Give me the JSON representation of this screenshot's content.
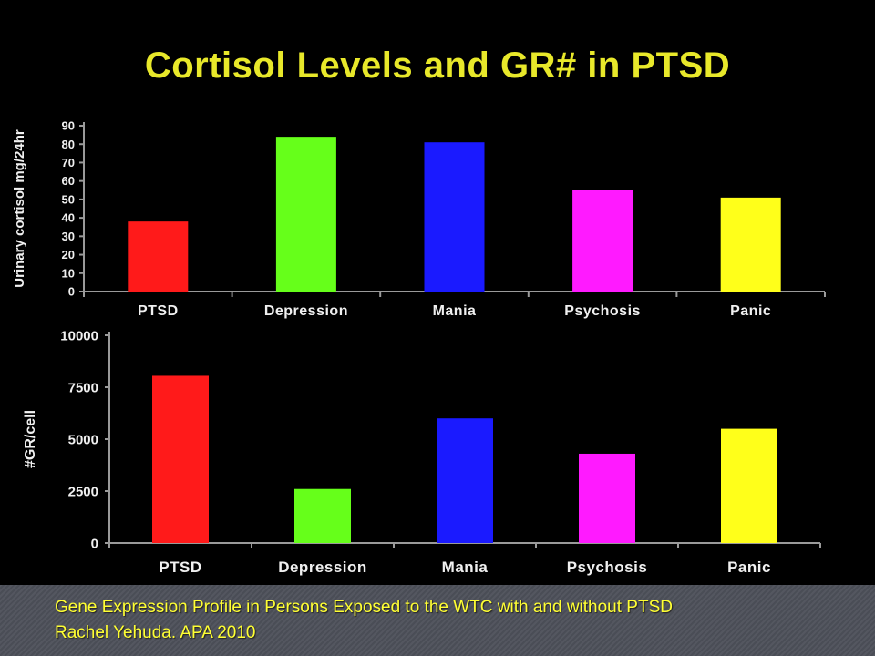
{
  "title": "Cortisol Levels and GR# in PTSD",
  "chart_data": [
    {
      "type": "bar",
      "categories": [
        "PTSD",
        "Depression",
        "Mania",
        "Psychosis",
        "Panic"
      ],
      "values": [
        38,
        84,
        81,
        55,
        51
      ],
      "colors": [
        "#ff1a1a",
        "#66ff1a",
        "#1a1aff",
        "#ff1aff",
        "#ffff1a"
      ],
      "ylabel": "Urinary cortisol mg/24hr",
      "ylim": [
        0,
        90
      ],
      "yticks": [
        0,
        10,
        20,
        30,
        40,
        50,
        60,
        70,
        80,
        90
      ],
      "grid": false
    },
    {
      "type": "bar",
      "categories": [
        "PTSD",
        "Depression",
        "Mania",
        "Psychosis",
        "Panic"
      ],
      "values": [
        8050,
        2600,
        6000,
        4300,
        5500
      ],
      "colors": [
        "#ff1a1a",
        "#66ff1a",
        "#1a1aff",
        "#ff1aff",
        "#ffff1a"
      ],
      "ylabel": "#GR/cell",
      "ylim": [
        0,
        10000
      ],
      "yticks": [
        0,
        2500,
        5000,
        7500,
        10000
      ],
      "grid": false
    }
  ],
  "footer": {
    "line1": "Gene Expression Profile in Persons Exposed to the WTC with and without PTSD",
    "line2": "Rachel Yehuda. APA 2010"
  },
  "colors": {
    "background": "#000000",
    "title": "#e8e82a",
    "axis_text": "#f0f0f0",
    "footer_text": "#ffff33"
  }
}
